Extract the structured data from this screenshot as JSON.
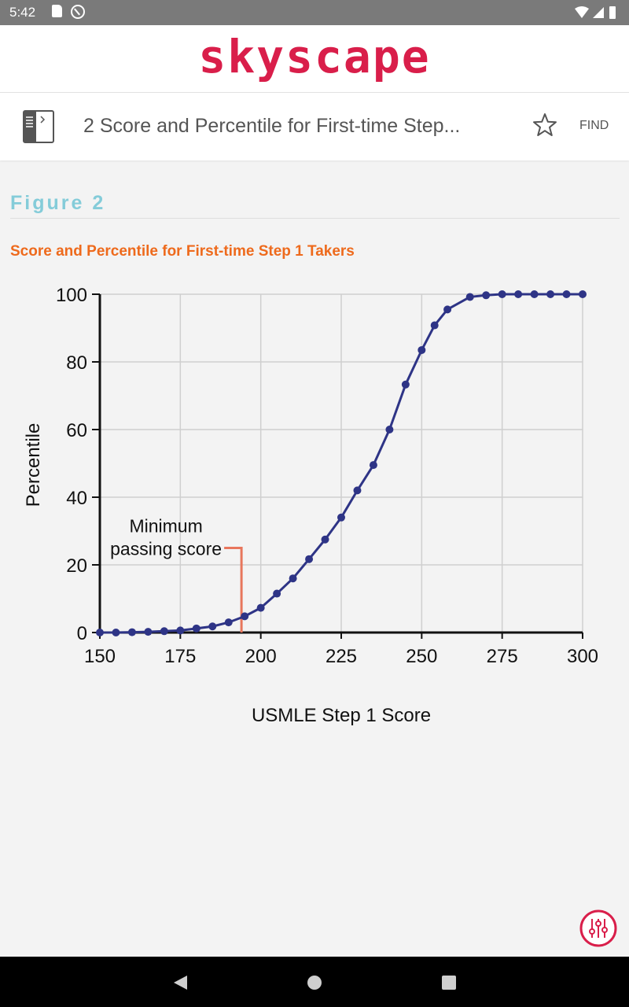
{
  "status_bar": {
    "time": "5:42"
  },
  "brand": {
    "logo": "skyscape"
  },
  "toolbar": {
    "title": "2 Score and Percentile for First-time Step...",
    "find_label": "FIND"
  },
  "content": {
    "figure_heading": "Figure 2",
    "figure_caption": "Score and Percentile for First-time Step 1 Takers"
  },
  "chart_data": {
    "type": "line",
    "xlabel": "USMLE Step 1 Score",
    "ylabel": "Percentile",
    "xlim": [
      150,
      300
    ],
    "ylim": [
      0,
      100
    ],
    "x_ticks": [
      "150",
      "175",
      "200",
      "225",
      "250",
      "275",
      "300"
    ],
    "y_ticks": [
      "0",
      "20",
      "40",
      "60",
      "80",
      "100"
    ],
    "grid": true,
    "annotation": {
      "lines": [
        "Minimum",
        "passing score"
      ],
      "x": 194,
      "y": 25,
      "color": "#e8765c"
    },
    "series": [
      {
        "color": "#2e3486",
        "points": [
          [
            150,
            0
          ],
          [
            155,
            0
          ],
          [
            160,
            0.1
          ],
          [
            165,
            0.2
          ],
          [
            170,
            0.4
          ],
          [
            175,
            0.6
          ],
          [
            180,
            1.2
          ],
          [
            185,
            1.8
          ],
          [
            190,
            3
          ],
          [
            195,
            4.8
          ],
          [
            200,
            7.3
          ],
          [
            205,
            11.5
          ],
          [
            210,
            16
          ],
          [
            215,
            21.7
          ],
          [
            220,
            27.5
          ],
          [
            225,
            34
          ],
          [
            230,
            42
          ],
          [
            235,
            49.5
          ],
          [
            240,
            60
          ],
          [
            245,
            73.3
          ],
          [
            250,
            83.5
          ],
          [
            254,
            90.8
          ],
          [
            258,
            95.5
          ],
          [
            265,
            99.2
          ],
          [
            270,
            99.7
          ],
          [
            275,
            100
          ],
          [
            280,
            100
          ],
          [
            285,
            100
          ],
          [
            290,
            100
          ],
          [
            295,
            100
          ],
          [
            300,
            100
          ]
        ]
      }
    ]
  }
}
